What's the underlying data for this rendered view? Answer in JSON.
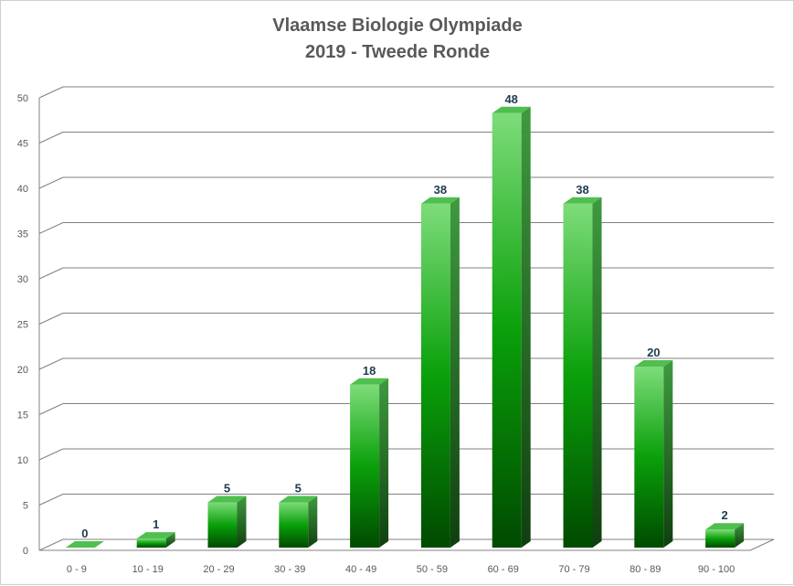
{
  "chart_data": {
    "type": "bar",
    "title": "Vlaamse Biologie Olympiade",
    "subtitle": "2019 - Tweede Ronde",
    "xlabel": "",
    "ylabel": "",
    "categories": [
      "0 - 9",
      "10 - 19",
      "20 - 29",
      "30 - 39",
      "40 - 49",
      "50 - 59",
      "60 - 69",
      "70 - 79",
      "80 - 89",
      "90 - 100"
    ],
    "values": [
      0,
      1,
      5,
      5,
      18,
      38,
      48,
      38,
      20,
      2
    ],
    "ylim": [
      0,
      50
    ],
    "yticks": [
      0,
      5,
      10,
      15,
      20,
      25,
      30,
      35,
      40,
      45,
      50
    ],
    "grid": true,
    "legend": "none",
    "style": "3d-column",
    "colors": {
      "bar_light": "#7ddc7a",
      "bar_mid": "#0aa00a",
      "bar_dark": "#004a00",
      "bar_side": "#1f7a1f",
      "bar_top": "#4fbf4f",
      "gridline": "#808080",
      "text": "#595959",
      "data_label": "#1f3d4d"
    }
  }
}
